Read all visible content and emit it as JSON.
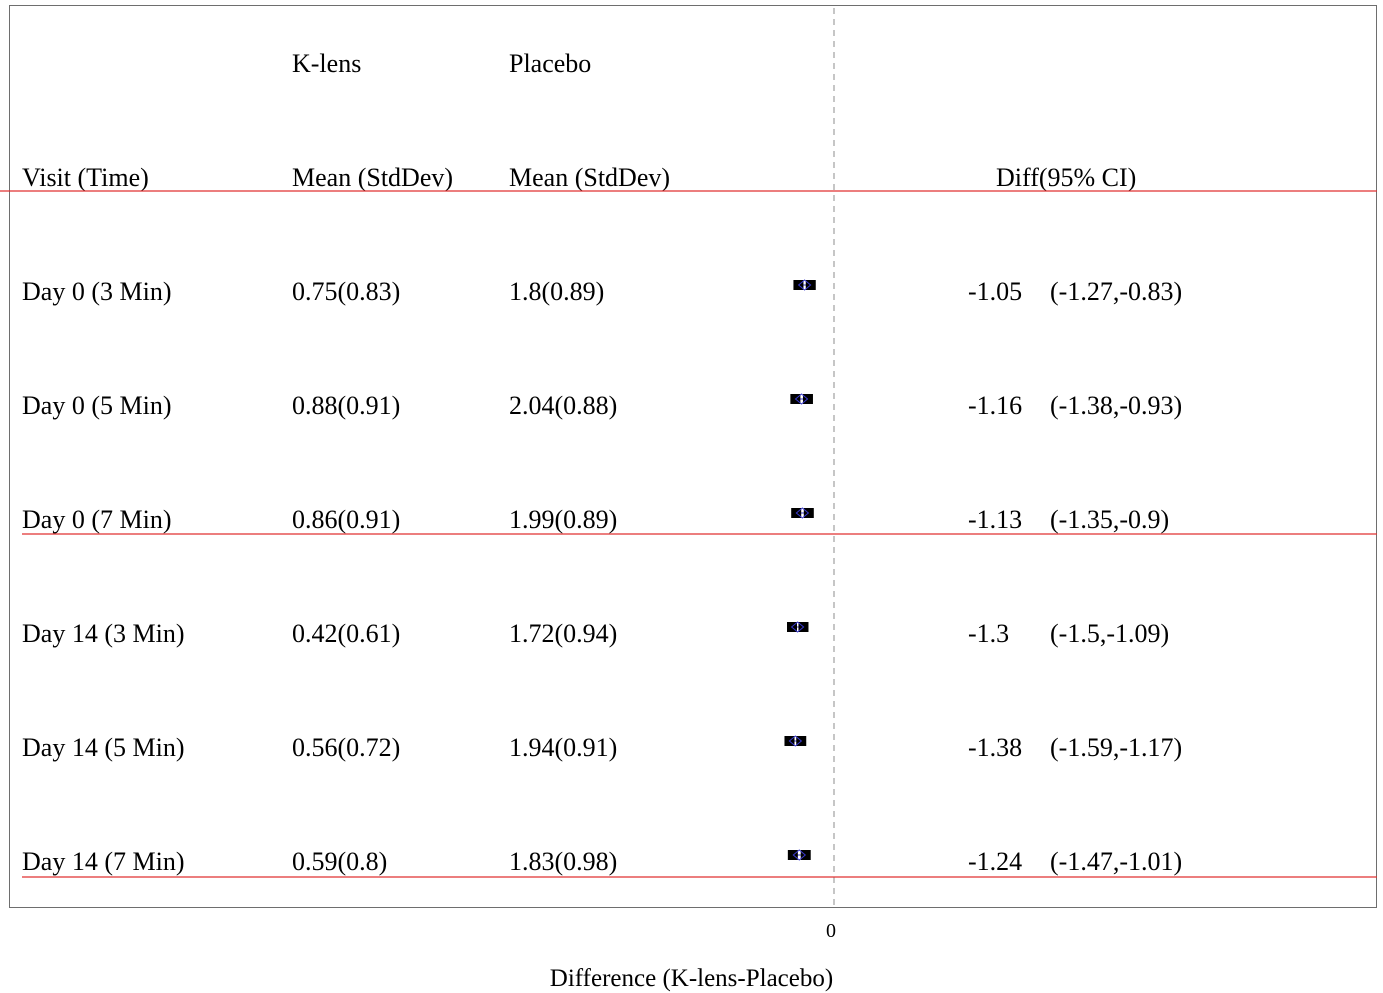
{
  "columns": {
    "group1": "K-lens",
    "group2": "Placebo",
    "visit": "Visit (Time)",
    "mean1": "Mean (StdDev)",
    "mean2": "Mean (StdDev)",
    "diff": "Diff(95% CI)"
  },
  "rows": [
    {
      "visit": "Day 0 (3 Min)",
      "klens": "0.75(0.83)",
      "placebo": "1.8(0.89)",
      "diff": "-1.05",
      "ci": "(-1.27,-0.83)"
    },
    {
      "visit": "Day 0 (5 Min)",
      "klens": "0.88(0.91)",
      "placebo": "2.04(0.88)",
      "diff": "-1.16",
      "ci": "(-1.38,-0.93)"
    },
    {
      "visit": "Day 0 (7 Min)",
      "klens": "0.86(0.91)",
      "placebo": "1.99(0.89)",
      "diff": "-1.13",
      "ci": "(-1.35,-0.9)"
    },
    {
      "visit": "Day 14 (3 Min)",
      "klens": "0.42(0.61)",
      "placebo": "1.72(0.94)",
      "diff": "-1.3",
      "ci": "(-1.5,-1.09)"
    },
    {
      "visit": "Day 14 (5 Min)",
      "klens": "0.56(0.72)",
      "placebo": "1.94(0.91)",
      "diff": "-1.38",
      "ci": "(-1.59,-1.17)"
    },
    {
      "visit": "Day 14 (7 Min)",
      "klens": "0.59(0.8)",
      "placebo": "1.83(0.98)",
      "diff": "-1.24",
      "ci": "(-1.47,-1.01)"
    }
  ],
  "chart_data": {
    "type": "scatter",
    "xlabel": "Difference (K-lens-Placebo)",
    "x_ticks": [
      "0"
    ],
    "reference_line": 0,
    "points": [
      {
        "label": "Day 0 (3 Min)",
        "diff": -1.05,
        "lower": -1.27,
        "upper": -0.83
      },
      {
        "label": "Day 0 (5 Min)",
        "diff": -1.16,
        "lower": -1.38,
        "upper": -0.93
      },
      {
        "label": "Day 0 (7 Min)",
        "diff": -1.13,
        "lower": -1.35,
        "upper": -0.9
      },
      {
        "label": "Day 14 (3 Min)",
        "diff": -1.3,
        "lower": -1.5,
        "upper": -1.09
      },
      {
        "label": "Day 14 (5 Min)",
        "diff": -1.38,
        "lower": -1.59,
        "upper": -1.17
      },
      {
        "label": "Day 14 (7 Min)",
        "diff": -1.24,
        "lower": -1.47,
        "upper": -1.01
      }
    ],
    "colors": {
      "marker": "#000000",
      "diamond": "#3a3ad0",
      "separator": "#e03030",
      "reference": "#8c8c8c"
    }
  }
}
